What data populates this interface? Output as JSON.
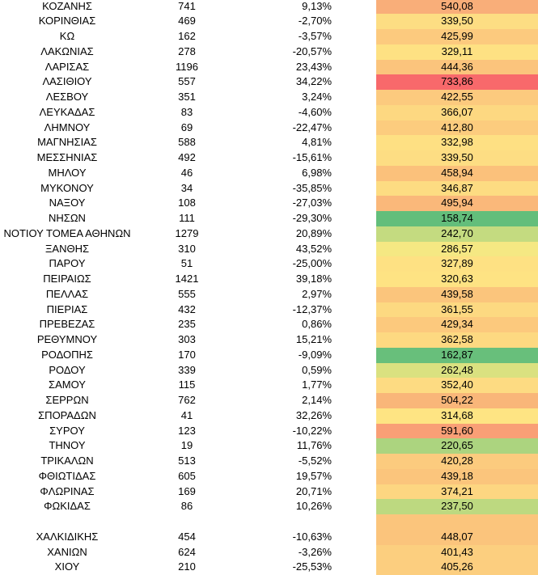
{
  "rows": [
    {
      "name": "ΚΟΖΑΝΗΣ",
      "count": "741",
      "change": "9,13%",
      "value": "540,08",
      "color": "#f9ae79"
    },
    {
      "name": "ΚΟΡΙΝΘΙΑΣ",
      "count": "469",
      "change": "-2,70%",
      "value": "339,50",
      "color": "#fddd83"
    },
    {
      "name": "ΚΩ",
      "count": "162",
      "change": "-3,57%",
      "value": "425,99",
      "color": "#fcca7e"
    },
    {
      "name": "ΛΑΚΩΝΙΑΣ",
      "count": "278",
      "change": "-20,57%",
      "value": "329,11",
      "color": "#fee183"
    },
    {
      "name": "ΛΑΡΙΣΑΣ",
      "count": "1196",
      "change": "23,43%",
      "value": "444,36",
      "color": "#fbc47c"
    },
    {
      "name": "ΛΑΣΙΘΙΟΥ",
      "count": "557",
      "change": "34,22%",
      "value": "733,86",
      "color": "#f8696b"
    },
    {
      "name": "ΛΕΣΒΟΥ",
      "count": "351",
      "change": "3,24%",
      "value": "422,55",
      "color": "#fcca7e"
    },
    {
      "name": "ΛΕΥΚΑΔΑΣ",
      "count": "83",
      "change": "-4,60%",
      "value": "366,07",
      "color": "#fdd881"
    },
    {
      "name": "ΛΗΜΝΟΥ",
      "count": "69",
      "change": "-22,47%",
      "value": "412,80",
      "color": "#fccc7e"
    },
    {
      "name": "ΜΑΓΝΗΣΙΑΣ",
      "count": "588",
      "change": "4,81%",
      "value": "332,98",
      "color": "#fee083"
    },
    {
      "name": "ΜΕΣΣΗΝΙΑΣ",
      "count": "492",
      "change": "-15,61%",
      "value": "339,50",
      "color": "#fddd83"
    },
    {
      "name": "ΜΗΛΟΥ",
      "count": "46",
      "change": "6,98%",
      "value": "458,94",
      "color": "#fbc17b"
    },
    {
      "name": "ΜΥΚΟΝΟΥ",
      "count": "34",
      "change": "-35,85%",
      "value": "346,87",
      "color": "#fddc82"
    },
    {
      "name": "ΝΑΞΟΥ",
      "count": "108",
      "change": "-27,03%",
      "value": "495,94",
      "color": "#fab87a"
    },
    {
      "name": "ΝΗΣΩΝ",
      "count": "111",
      "change": "-29,30%",
      "value": "158,74",
      "color": "#63be7b"
    },
    {
      "name": "ΝΟΤΙΟΥ ΤΟΜΕΑ ΑΘΗΝΩΝ",
      "count": "1279",
      "change": "20,89%",
      "value": "242,70",
      "color": "#c4db80"
    },
    {
      "name": "ΞΑΝΘΗΣ",
      "count": "310",
      "change": "43,52%",
      "value": "286,57",
      "color": "#f5e883"
    },
    {
      "name": "ΠΑΡΟΥ",
      "count": "51",
      "change": "-25,00%",
      "value": "327,89",
      "color": "#fee183"
    },
    {
      "name": "ΠΕΙΡΑΙΩΣ",
      "count": "1421",
      "change": "39,18%",
      "value": "320,63",
      "color": "#fee383"
    },
    {
      "name": "ΠΕΛΛΑΣ",
      "count": "555",
      "change": "2,97%",
      "value": "439,58",
      "color": "#fbc57c"
    },
    {
      "name": "ΠΙΕΡΙΑΣ",
      "count": "432",
      "change": "-12,37%",
      "value": "361,55",
      "color": "#fdd981"
    },
    {
      "name": "ΠΡΕΒΕΖΑΣ",
      "count": "235",
      "change": "0,86%",
      "value": "429,34",
      "color": "#fcc97d"
    },
    {
      "name": "ΡΕΘΥΜΝΟΥ",
      "count": "303",
      "change": "15,21%",
      "value": "362,58",
      "color": "#fdd981"
    },
    {
      "name": "ΡΟΔΟΠΗΣ",
      "count": "170",
      "change": "-9,09%",
      "value": "162,87",
      "color": "#68bf7b"
    },
    {
      "name": "ΡΟΔΟΥ",
      "count": "339",
      "change": "0,59%",
      "value": "262,48",
      "color": "#dae180"
    },
    {
      "name": "ΣΑΜΟΥ",
      "count": "115",
      "change": "1,77%",
      "value": "352,40",
      "color": "#fddb82"
    },
    {
      "name": "ΣΕΡΡΩΝ",
      "count": "762",
      "change": "2,14%",
      "value": "504,22",
      "color": "#f9b679"
    },
    {
      "name": "ΣΠΟΡΑΔΩΝ",
      "count": "41",
      "change": "32,26%",
      "value": "314,68",
      "color": "#fee483"
    },
    {
      "name": "ΣΥΡΟΥ",
      "count": "123",
      "change": "-10,22%",
      "value": "591,60",
      "color": "#f99f76"
    },
    {
      "name": "ΤΗΝΟΥ",
      "count": "19",
      "change": "11,76%",
      "value": "220,65",
      "color": "#acd47f"
    },
    {
      "name": "ΤΡΙΚΑΛΩΝ",
      "count": "513",
      "change": "-5,52%",
      "value": "420,28",
      "color": "#fccb7e"
    },
    {
      "name": "ΦΘΙΩΤΙΔΑΣ",
      "count": "605",
      "change": "19,57%",
      "value": "439,18",
      "color": "#fbc57c"
    },
    {
      "name": "ΦΛΩΡΙΝΑΣ",
      "count": "169",
      "change": "20,71%",
      "value": "374,21",
      "color": "#fdd681"
    },
    {
      "name": "ΦΩΚΙΔΑΣ",
      "count": "86",
      "change": "10,26%",
      "value": "237,50",
      "color": "#bdd980"
    },
    {
      "name": "",
      "count": "",
      "change": "",
      "value": "",
      "color": "#fbc57c",
      "spacer": true
    },
    {
      "name": "ΧΑΛΚΙΔΙΚΗΣ",
      "count": "454",
      "change": "-10,63%",
      "value": "448,07",
      "color": "#fbc47c"
    },
    {
      "name": "ΧΑΝΙΩΝ",
      "count": "624",
      "change": "-3,26%",
      "value": "401,43",
      "color": "#fccf7f"
    },
    {
      "name": "ΧΙΟΥ",
      "count": "210",
      "change": "-25,53%",
      "value": "405,26",
      "color": "#fcce7f"
    }
  ]
}
